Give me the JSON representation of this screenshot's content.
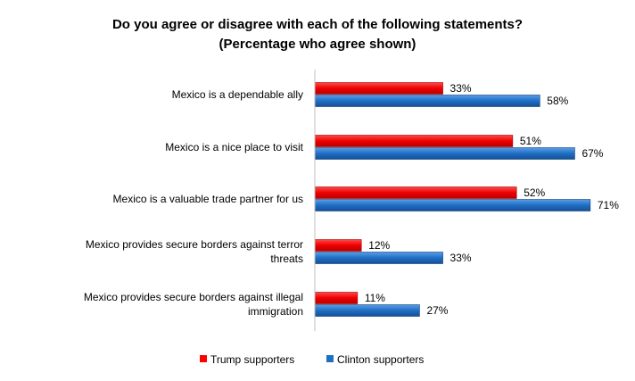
{
  "chart_data": {
    "type": "bar",
    "orientation": "horizontal",
    "title": "Do you agree or disagree with each of the following statements?",
    "subtitle": "(Percentage who agree shown)",
    "categories": [
      "Mexico is a dependable ally",
      "Mexico is a nice place to visit",
      "Mexico is a valuable trade partner for us",
      "Mexico provides secure borders against terror threats",
      "Mexico provides secure borders against illegal immigration"
    ],
    "series": [
      {
        "name": "Trump supporters",
        "values": [
          33,
          51,
          52,
          12,
          11
        ],
        "labels": [
          "33%",
          "51%",
          "52%",
          "12%",
          "11%"
        ],
        "color": "#ff0000"
      },
      {
        "name": "Clinton supporters",
        "values": [
          58,
          67,
          71,
          33,
          27
        ],
        "labels": [
          "58%",
          "67%",
          "71%",
          "33%",
          "27%"
        ],
        "color": "#1f6fc6"
      }
    ],
    "xlim": [
      0,
      100
    ],
    "grid": false,
    "legend": "bottom"
  }
}
